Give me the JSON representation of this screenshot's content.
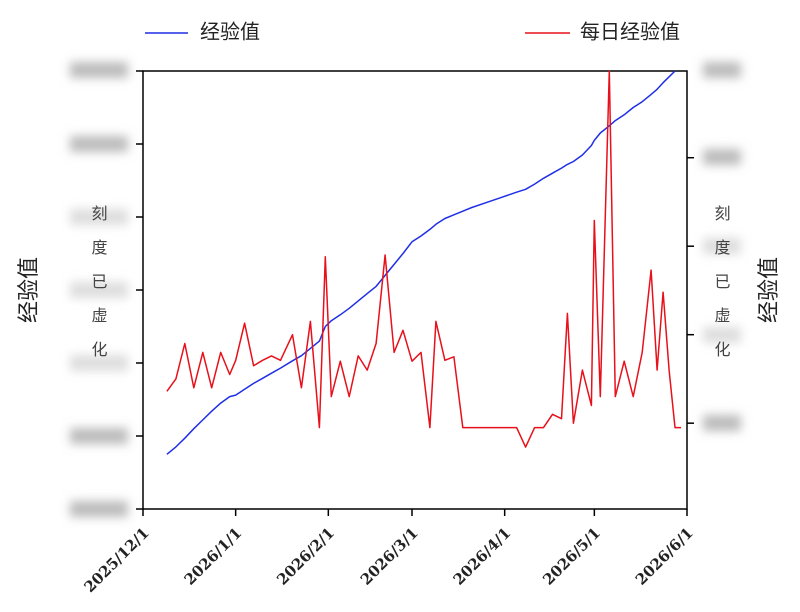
{
  "chart_data": {
    "type": "line",
    "x": [
      "2025/12/9",
      "2025/12/12",
      "2025/12/15",
      "2025/12/18",
      "2025/12/21",
      "2025/12/24",
      "2025/12/27",
      "2025/12/30",
      "2026/1/1",
      "2026/1/4",
      "2026/1/7",
      "2026/1/10",
      "2026/1/13",
      "2026/1/16",
      "2026/1/20",
      "2026/1/23",
      "2026/1/26",
      "2026/1/29",
      "2026/1/31",
      "2026/2/2",
      "2026/2/5",
      "2026/2/8",
      "2026/2/11",
      "2026/2/14",
      "2026/2/17",
      "2026/2/20",
      "2026/2/23",
      "2026/2/26",
      "2026/3/1",
      "2026/3/4",
      "2026/3/7",
      "2026/3/9",
      "2026/3/12",
      "2026/3/15",
      "2026/3/18",
      "2026/3/21",
      "2026/3/26",
      "2026/3/31",
      "2026/4/5",
      "2026/4/8",
      "2026/4/11",
      "2026/4/14",
      "2026/4/17",
      "2026/4/20",
      "2026/4/22",
      "2026/4/24",
      "2026/4/27",
      "2026/4/30",
      "2026/5/1",
      "2026/5/3",
      "2026/5/6",
      "2026/5/8",
      "2026/5/11",
      "2026/5/14",
      "2026/5/17",
      "2026/5/20",
      "2026/5/22",
      "2026/5/24",
      "2026/5/26",
      "2026/5/28",
      "2026/5/30"
    ],
    "series": [
      {
        "name": "经验值",
        "color": "#1f2fe6",
        "axis": "y",
        "values": [
          0.75,
          0.85,
          0.97,
          1.1,
          1.22,
          1.34,
          1.45,
          1.54,
          1.56,
          1.64,
          1.72,
          1.79,
          1.86,
          1.93,
          2.03,
          2.1,
          2.2,
          2.3,
          2.5,
          2.58,
          2.66,
          2.75,
          2.85,
          2.95,
          3.05,
          3.2,
          3.35,
          3.5,
          3.66,
          3.74,
          3.83,
          3.9,
          3.98,
          4.03,
          4.08,
          4.13,
          4.2,
          4.27,
          4.34,
          4.38,
          4.45,
          4.53,
          4.6,
          4.67,
          4.72,
          4.76,
          4.85,
          4.98,
          5.05,
          5.15,
          5.25,
          5.32,
          5.4,
          5.5,
          5.58,
          5.68,
          5.75,
          5.84,
          5.92,
          6.0,
          null
        ]
      },
      {
        "name": "每日经验值",
        "color": "#e8101a",
        "axis": "y2",
        "values": [
          0.36,
          0.5,
          0.9,
          0.4,
          0.8,
          0.4,
          0.8,
          0.55,
          0.71,
          1.13,
          0.65,
          0.71,
          0.76,
          0.71,
          1.0,
          0.4,
          1.15,
          -0.05,
          1.88,
          0.3,
          0.7,
          0.3,
          0.76,
          0.6,
          0.9,
          1.9,
          0.8,
          1.05,
          0.7,
          0.8,
          -0.05,
          1.15,
          0.71,
          0.75,
          -0.05,
          -0.05,
          -0.05,
          -0.05,
          -0.05,
          -0.27,
          -0.05,
          -0.05,
          0.1,
          0.05,
          1.24,
          0.0,
          0.6,
          0.2,
          2.29,
          0.3,
          3.98,
          0.3,
          0.7,
          0.3,
          0.8,
          1.73,
          0.6,
          1.48,
          0.6,
          -0.05,
          -0.05
        ]
      }
    ],
    "xlim": [
      "2025/12/1",
      "2026/6/1"
    ],
    "xticks": [
      "2025/12/1",
      "2026/1/1",
      "2026/2/1",
      "2026/3/1",
      "2026/4/1",
      "2026/5/1",
      "2026/6/1"
    ],
    "ylim": [
      0,
      6
    ],
    "yticks": [
      0,
      1,
      2,
      3,
      4,
      5,
      6
    ],
    "y2lim": [
      -0.97,
      3.98
    ],
    "y2ticks": [
      0,
      1,
      2,
      3
    ],
    "ylabel": "经验值",
    "y2label": "经验值",
    "annotations": [
      "刻度已虚化",
      "刻度已虚化"
    ]
  }
}
